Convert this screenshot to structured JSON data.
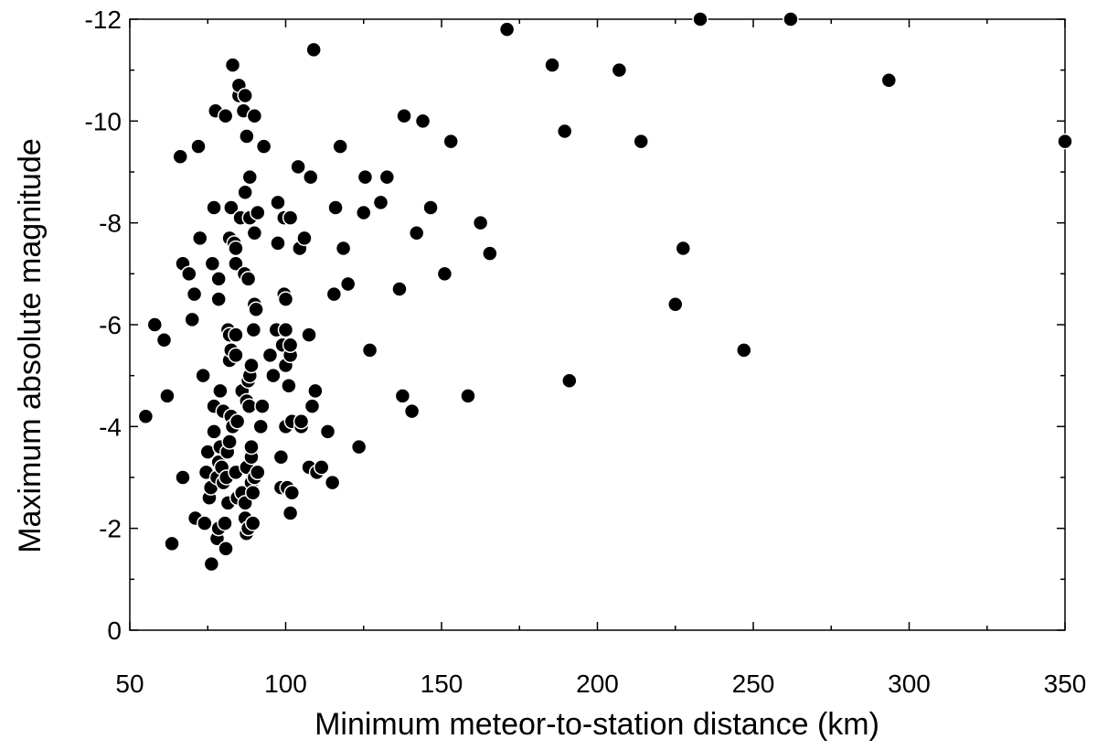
{
  "chart_data": {
    "type": "scatter",
    "xlabel": "Minimum meteor-to-station distance (km)",
    "ylabel": "Maximum absolute magnitude",
    "xlim": [
      50,
      350
    ],
    "ylim": [
      0,
      -12
    ],
    "y_axis_inverted": true,
    "xticks": [
      50,
      100,
      150,
      200,
      250,
      300,
      350
    ],
    "yticks": [
      0,
      -2,
      -4,
      -6,
      -8,
      -10,
      -12
    ],
    "xtick_labels": [
      "50",
      "100",
      "150",
      "200",
      "250",
      "300",
      "350"
    ],
    "ytick_labels": [
      "0",
      "-2",
      "-4",
      "-6",
      "-8",
      "-10",
      "-12"
    ],
    "grid": false,
    "marker": "filled circle",
    "marker_color": "#000000",
    "marker_edge": "#ffffff",
    "points": [
      [
        55.1,
        -4.2
      ],
      [
        58,
        -6.0
      ],
      [
        61,
        -5.7
      ],
      [
        62,
        -4.6
      ],
      [
        63.5,
        -1.7
      ],
      [
        66.2,
        -9.3
      ],
      [
        67,
        -3.0
      ],
      [
        67,
        -7.2
      ],
      [
        69,
        -7.0
      ],
      [
        70,
        -6.1
      ],
      [
        70.7,
        -6.6
      ],
      [
        71,
        -2.2
      ],
      [
        72,
        -9.5
      ],
      [
        72.5,
        -7.7
      ],
      [
        73.5,
        -5.0
      ],
      [
        74,
        -2.1
      ],
      [
        74.5,
        -3.1
      ],
      [
        75,
        -3.5
      ],
      [
        75.5,
        -2.6
      ],
      [
        76,
        -2.8
      ],
      [
        76.2,
        -1.3
      ],
      [
        76.5,
        -7.2
      ],
      [
        77,
        -8.3
      ],
      [
        77,
        -3.9
      ],
      [
        77,
        -4.4
      ],
      [
        77.5,
        -10.2
      ],
      [
        78,
        -3.0
      ],
      [
        78,
        -1.8
      ],
      [
        78.5,
        -2.0
      ],
      [
        78.5,
        -3.3
      ],
      [
        78.5,
        -6.5
      ],
      [
        78.5,
        -6.9
      ],
      [
        79,
        -4.7
      ],
      [
        79,
        -3.6
      ],
      [
        79.5,
        -3.2
      ],
      [
        80,
        -4.3
      ],
      [
        80,
        -2.9
      ],
      [
        80.5,
        -2.1
      ],
      [
        80.7,
        -10.1
      ],
      [
        80.8,
        -1.6
      ],
      [
        81,
        -3.0
      ],
      [
        81.3,
        -3.5
      ],
      [
        81.5,
        -5.9
      ],
      [
        81.5,
        -2.5
      ],
      [
        82,
        -5.3
      ],
      [
        82,
        -5.8
      ],
      [
        82,
        -3.7
      ],
      [
        82,
        -7.7
      ],
      [
        82.5,
        -8.3
      ],
      [
        82.5,
        -5.5
      ],
      [
        82.5,
        -4.2
      ],
      [
        83,
        -11.1
      ],
      [
        83,
        -4.0
      ],
      [
        83.5,
        -7.6
      ],
      [
        84,
        -5.4
      ],
      [
        84,
        -5.8
      ],
      [
        84,
        -3.1
      ],
      [
        84,
        -7.2
      ],
      [
        84,
        -7.5
      ],
      [
        84.5,
        -2.6
      ],
      [
        84.5,
        -4.1
      ],
      [
        85,
        -10.5
      ],
      [
        85,
        -10.7
      ],
      [
        85.5,
        -8.1
      ],
      [
        86,
        -2.7
      ],
      [
        86,
        -4.7
      ],
      [
        86.5,
        -10.2
      ],
      [
        86.8,
        -7.0
      ],
      [
        87,
        -2.5
      ],
      [
        87,
        -2.2
      ],
      [
        87,
        -10.5
      ],
      [
        87,
        -8.6
      ],
      [
        87.4,
        -1.9
      ],
      [
        87.5,
        -9.7
      ],
      [
        87.5,
        -3.2
      ],
      [
        87.5,
        -4.5
      ],
      [
        88,
        -4.9
      ],
      [
        88,
        -2.0
      ],
      [
        88,
        -6.9
      ],
      [
        88.3,
        -4.4
      ],
      [
        88.5,
        -8.9
      ],
      [
        88.5,
        -8.1
      ],
      [
        88.5,
        -5.0
      ],
      [
        89,
        -2.9
      ],
      [
        89,
        -3.5
      ],
      [
        89,
        -5.2
      ],
      [
        89,
        -3.4
      ],
      [
        89,
        -3.6
      ],
      [
        89.5,
        -2.7
      ],
      [
        89.5,
        -2.1
      ],
      [
        89.7,
        -5.9
      ],
      [
        90,
        -10.1
      ],
      [
        90,
        -7.8
      ],
      [
        90,
        -6.4
      ],
      [
        90,
        -3.0
      ],
      [
        90.5,
        -6.3
      ],
      [
        91,
        -8.2
      ],
      [
        91,
        -3.1
      ],
      [
        92,
        -4.0
      ],
      [
        92.5,
        -4.4
      ],
      [
        93,
        -9.5
      ],
      [
        95,
        -5.4
      ],
      [
        96,
        -5.0
      ],
      [
        97,
        -5.9
      ],
      [
        97.5,
        -8.4
      ],
      [
        97.5,
        -7.6
      ],
      [
        98.5,
        -3.4
      ],
      [
        98.5,
        -2.8
      ],
      [
        99,
        -5.6
      ],
      [
        99.5,
        -8.1
      ],
      [
        99.5,
        -6.6
      ],
      [
        100,
        -6.5
      ],
      [
        100,
        -4.0
      ],
      [
        100,
        -5.2
      ],
      [
        100,
        -5.9
      ],
      [
        100.5,
        -2.8
      ],
      [
        101,
        -4.8
      ],
      [
        101.5,
        -8.1
      ],
      [
        101.5,
        -5.4
      ],
      [
        101.5,
        -5.6
      ],
      [
        101.5,
        -2.3
      ],
      [
        102,
        -4.1
      ],
      [
        102,
        -2.7
      ],
      [
        104,
        -9.1
      ],
      [
        104.5,
        -7.5
      ],
      [
        105,
        -4.0
      ],
      [
        105,
        -4.1
      ],
      [
        106,
        -7.7
      ],
      [
        107.5,
        -5.8
      ],
      [
        107.5,
        -3.2
      ],
      [
        108,
        -8.9
      ],
      [
        108.5,
        -4.4
      ],
      [
        109,
        -11.4
      ],
      [
        109.5,
        -4.7
      ],
      [
        110,
        -3.1
      ],
      [
        111.5,
        -3.2
      ],
      [
        113.5,
        -3.9
      ],
      [
        115,
        -2.9
      ],
      [
        115.5,
        -6.6
      ],
      [
        116,
        -8.3
      ],
      [
        117.5,
        -9.5
      ],
      [
        118.5,
        -7.5
      ],
      [
        120,
        -6.8
      ],
      [
        123.5,
        -3.6
      ],
      [
        125,
        -8.2
      ],
      [
        125.5,
        -8.9
      ],
      [
        127,
        -5.5
      ],
      [
        130.5,
        -8.4
      ],
      [
        132.5,
        -8.9
      ],
      [
        136.5,
        -6.7
      ],
      [
        137.5,
        -4.6
      ],
      [
        138,
        -10.1
      ],
      [
        140.5,
        -4.3
      ],
      [
        142,
        -7.8
      ],
      [
        144,
        -10.0
      ],
      [
        146.5,
        -8.3
      ],
      [
        151,
        -7.0
      ],
      [
        153,
        -9.6
      ],
      [
        158.5,
        -4.6
      ],
      [
        162.5,
        -8.0
      ],
      [
        165.5,
        -7.4
      ],
      [
        171,
        -11.8
      ],
      [
        185.5,
        -11.1
      ],
      [
        189.5,
        -9.8
      ],
      [
        191,
        -4.9
      ],
      [
        207,
        -11.0
      ],
      [
        214,
        -9.6
      ],
      [
        225,
        -6.4
      ],
      [
        227.5,
        -7.5
      ],
      [
        233,
        -12.0
      ],
      [
        247,
        -5.5
      ],
      [
        262,
        -12.0
      ],
      [
        293.5,
        -10.8
      ],
      [
        350,
        -9.6
      ]
    ]
  }
}
